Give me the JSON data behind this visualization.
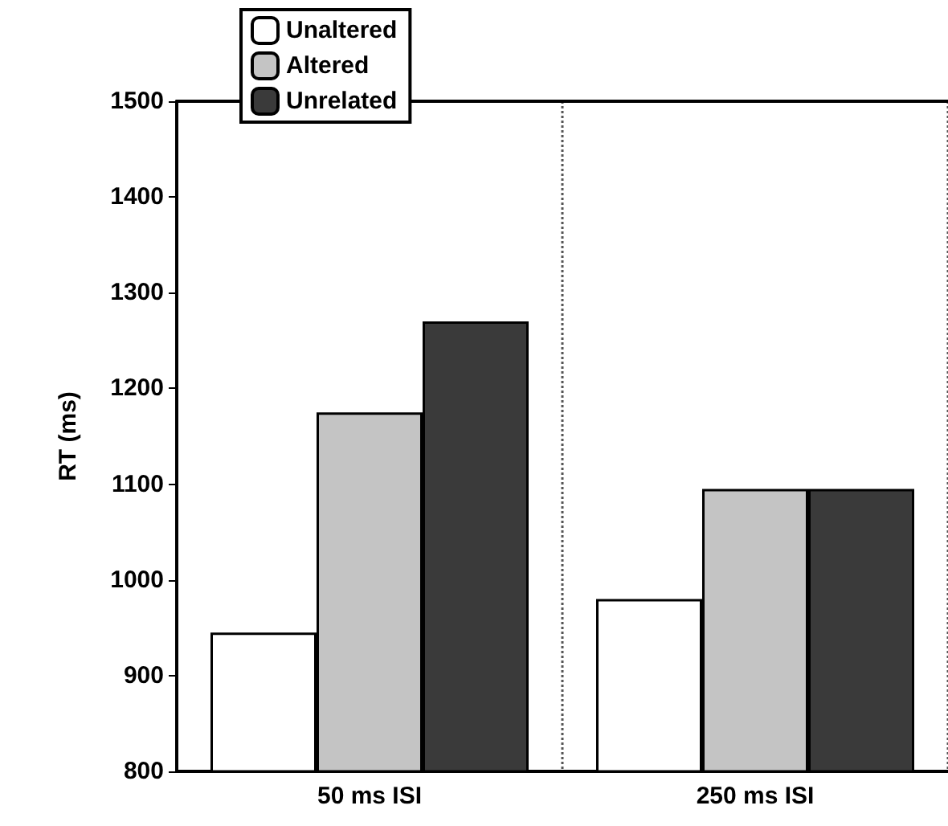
{
  "chart_data": {
    "type": "bar",
    "ylabel": "RT (ms)",
    "categories": [
      "50 ms ISI",
      "250 ms ISI"
    ],
    "series": [
      {
        "name": "Unaltered",
        "color": "#ffffff",
        "values": [
          945,
          980
        ]
      },
      {
        "name": "Altered",
        "color": "#c4c4c4",
        "values": [
          1175,
          1095
        ]
      },
      {
        "name": "Unrelated",
        "color": "#3a3a3a",
        "values": [
          1270,
          1095
        ]
      }
    ],
    "ylim": [
      800,
      1500
    ],
    "yticks": [
      800,
      900,
      1000,
      1100,
      1200,
      1300,
      1400,
      1500
    ],
    "grid": "x",
    "legend": "top left",
    "line_style": "dotted"
  }
}
